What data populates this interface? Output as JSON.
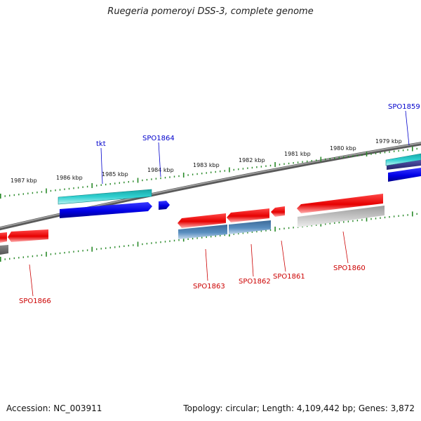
{
  "title": "Ruegeria pomeroyi DSS-3, complete genome",
  "footer": {
    "accession": "Accession: NC_003911",
    "topology": "Topology: circular; Length: 4,109,442 bp; Genes: 3,872"
  },
  "scale_labels": [
    "1987 kbp",
    "1986 kbp",
    "1985 kbp",
    "1984 kbp",
    "1983 kbp",
    "1982 kbp",
    "1981 kbp",
    "1980 kbp",
    "1979 kbp"
  ],
  "gene_labels": [
    {
      "name": "SPO1859",
      "color": "#0000cc"
    },
    {
      "name": "tkt",
      "color": "#0000cc"
    },
    {
      "name": "SPO1864",
      "color": "#0000cc"
    },
    {
      "name": "SPO1866",
      "color": "#cc0000"
    },
    {
      "name": "SPO1863",
      "color": "#cc0000"
    },
    {
      "name": "SPO1862",
      "color": "#cc0000"
    },
    {
      "name": "SPO1861",
      "color": "#cc0000"
    },
    {
      "name": "SPO1860",
      "color": "#cc0000"
    }
  ],
  "colors": {
    "forward_gene": "#0000e6",
    "reverse_gene": "#e60000",
    "forward_feature": "#20c4c4",
    "reverse_feature": "#4a7fb0",
    "pseudo_feature": "#b8b8b8",
    "ticks": "#2a8a2a",
    "backbone": "#707070"
  }
}
